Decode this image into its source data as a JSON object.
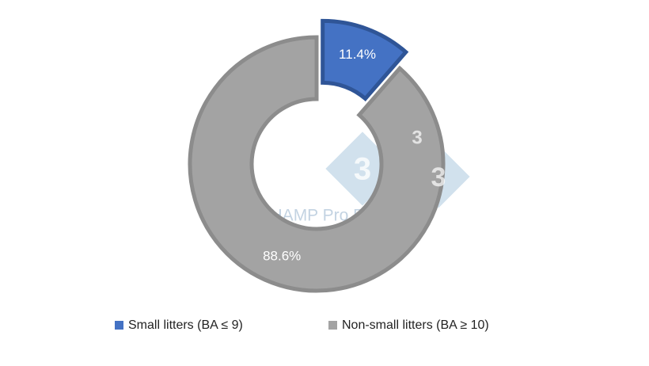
{
  "chart_data": {
    "type": "donut",
    "categories": [
      "Small litters (BA ≤ 9)",
      "Non-small litters (BA ≥ 10)"
    ],
    "values": [
      11.4,
      88.6
    ],
    "value_labels": [
      "11.4%",
      "88.6%"
    ],
    "colors": [
      "#4472c4",
      "#a3a3a3"
    ],
    "explode": [
      true,
      false
    ],
    "legend": "bottom"
  },
  "watermark": {
    "text": "PigCHAMP Pro Europa",
    "logo": "3"
  }
}
